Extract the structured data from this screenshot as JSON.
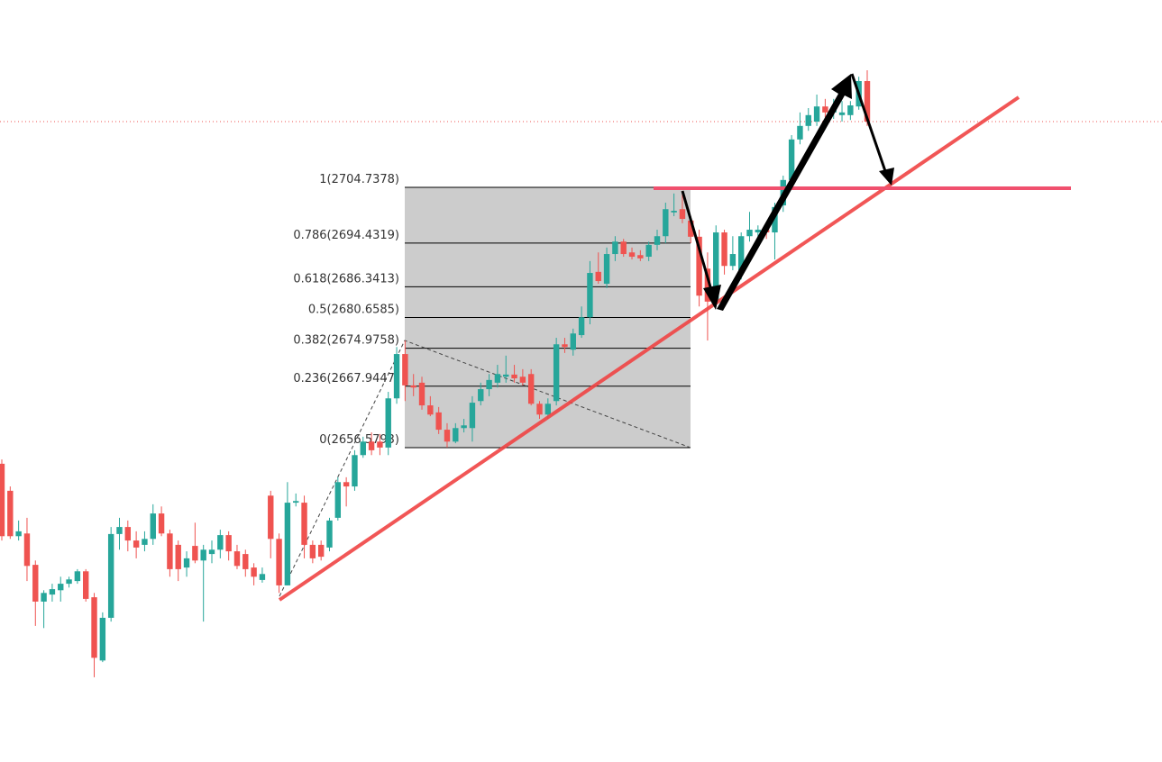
{
  "chart_data": {
    "type": "candlestick",
    "up_color": "#26a69a",
    "down_color": "#ef5350",
    "fib_levels": [
      {
        "value": 2704.7378,
        "label": "1(2704.7378)"
      },
      {
        "value": 2694.4319,
        "label": "0.786(2694.4319)"
      },
      {
        "value": 2686.3413,
        "label": "0.618(2686.3413)"
      },
      {
        "value": 2680.6585,
        "label": "0.5(2680.6585)"
      },
      {
        "value": 2674.9758,
        "label": "0.382(2674.9758)"
      },
      {
        "value": 2667.9447,
        "label": "0.236(2667.9447)"
      },
      {
        "value": 2656.5793,
        "label": "0(2656.5793)"
      }
    ],
    "open": [
      2653.6,
      2648.6,
      2640.2,
      2640.7,
      2634.9,
      2628.1,
      2629.4,
      2630.2,
      2631.4,
      2631.9,
      2633.7,
      2628.9,
      2617.2,
      2625.1,
      2640.6,
      2641.9,
      2639.4,
      2638.6,
      2639.7,
      2644.4,
      2640.7,
      2638.6,
      2634.4,
      2638.4,
      2635.7,
      2636.9,
      2637.7,
      2640.4,
      2637.4,
      2636.9,
      2634.4,
      2632.1,
      2647.7,
      2639.7,
      2631.1,
      2646.4,
      2646.4,
      2638.6,
      2638.6,
      2638.1,
      2643.6,
      2650.2,
      2649.4,
      2655.2,
      2657.7,
      2657.7,
      2656.6,
      2665.7,
      2673.9,
      2668.1,
      2668.6,
      2664.4,
      2663.1,
      2659.9,
      2657.7,
      2660.2,
      2660.2,
      2665.2,
      2667.4,
      2668.6,
      2669.7,
      2670.1,
      2669.7,
      2670.2,
      2664.7,
      2662.7,
      2665.2,
      2675.7,
      2674.7,
      2677.4,
      2680.7,
      2689.1,
      2686.9,
      2692.4,
      2694.7,
      2692.7,
      2692.2,
      2691.9,
      2694.1,
      2695.7,
      2700.1,
      2700.7,
      2698.6,
      2695.6,
      2689.7,
      2683.6,
      2696.4,
      2690.2,
      2689.4,
      2695.7,
      2696.4,
      2696.9,
      2696.4,
      2701.4,
      2706.1,
      2713.6,
      2716.1,
      2716.9,
      2719.7,
      2718.6,
      2718.1,
      2718.1,
      2719.7,
      2724.4
    ],
    "high": [
      2654.4,
      2649.4,
      2643.1,
      2643.6,
      2635.7,
      2630.2,
      2631.4,
      2632.7,
      2632.7,
      2634.1,
      2634.1,
      2629.7,
      2626.1,
      2641.9,
      2643.6,
      2643.1,
      2641.1,
      2641.1,
      2646.1,
      2645.7,
      2641.4,
      2639.4,
      2637.4,
      2642.7,
      2638.6,
      2639.4,
      2641.4,
      2641.1,
      2638.6,
      2637.7,
      2635.2,
      2634.4,
      2648.6,
      2640.7,
      2650.2,
      2648.1,
      2647.7,
      2639.4,
      2639.4,
      2643.6,
      2651.1,
      2651.1,
      2656.1,
      2658.6,
      2659.4,
      2659.1,
      2666.9,
      2675.2,
      2676.4,
      2670.2,
      2669.7,
      2666.1,
      2664.1,
      2661.1,
      2661.1,
      2661.9,
      2666.1,
      2668.6,
      2670.2,
      2671.9,
      2673.6,
      2671.9,
      2671.1,
      2671.1,
      2665.2,
      2665.7,
      2676.9,
      2676.9,
      2678.6,
      2682.7,
      2691.1,
      2692.7,
      2693.6,
      2695.7,
      2695.2,
      2693.6,
      2693.1,
      2694.7,
      2696.9,
      2701.9,
      2703.6,
      2704.1,
      2699.4,
      2696.9,
      2692.7,
      2697.7,
      2696.9,
      2695.7,
      2696.4,
      2700.2,
      2697.7,
      2697.7,
      2701.9,
      2706.9,
      2714.4,
      2718.6,
      2719.4,
      2721.9,
      2721.1,
      2721.1,
      2720.7,
      2720.7,
      2725.2,
      2726.4
    ],
    "low": [
      2639.4,
      2639.7,
      2639.4,
      2631.9,
      2623.6,
      2623.2,
      2628.1,
      2628.1,
      2630.7,
      2631.4,
      2628.1,
      2614.1,
      2616.9,
      2624.4,
      2637.7,
      2637.4,
      2636.1,
      2637.4,
      2638.6,
      2640.2,
      2632.7,
      2631.9,
      2632.7,
      2635.2,
      2624.4,
      2635.2,
      2636.1,
      2635.7,
      2634.1,
      2632.7,
      2631.1,
      2631.6,
      2636.1,
      2629.7,
      2631.1,
      2645.7,
      2636.1,
      2635.2,
      2635.7,
      2637.4,
      2643.1,
      2645.7,
      2648.6,
      2654.7,
      2655.2,
      2655.2,
      2655.2,
      2664.7,
      2665.2,
      2666.1,
      2663.6,
      2662.4,
      2659.1,
      2656.6,
      2657.4,
      2659.4,
      2657.7,
      2664.4,
      2666.1,
      2667.7,
      2668.6,
      2668.6,
      2668.1,
      2664.4,
      2661.9,
      2661.9,
      2664.4,
      2674.1,
      2673.6,
      2676.9,
      2679.4,
      2686.9,
      2686.1,
      2691.1,
      2691.9,
      2691.4,
      2691.1,
      2691.1,
      2693.1,
      2694.4,
      2699.4,
      2698.1,
      2694.4,
      2682.7,
      2676.4,
      2682.7,
      2688.6,
      2689.4,
      2687.7,
      2694.7,
      2693.6,
      2695.2,
      2691.4,
      2700.2,
      2705.2,
      2712.7,
      2715.2,
      2716.1,
      2717.7,
      2717.4,
      2716.9,
      2717.2,
      2719.1,
      2716.1
    ],
    "close": [
      2640.2,
      2640.2,
      2641.1,
      2634.7,
      2628.1,
      2629.7,
      2630.4,
      2631.4,
      2632.2,
      2633.7,
      2628.6,
      2617.7,
      2625.1,
      2640.6,
      2641.9,
      2639.4,
      2638.1,
      2639.7,
      2644.4,
      2640.7,
      2634.1,
      2634.1,
      2636.1,
      2635.7,
      2637.7,
      2637.7,
      2640.4,
      2637.4,
      2634.7,
      2634.1,
      2632.7,
      2633.2,
      2639.7,
      2631.1,
      2646.4,
      2646.7,
      2638.6,
      2636.1,
      2636.4,
      2643.1,
      2650.2,
      2649.4,
      2655.2,
      2657.7,
      2656.1,
      2656.6,
      2665.7,
      2673.9,
      2668.1,
      2667.7,
      2664.4,
      2662.7,
      2659.9,
      2657.7,
      2660.2,
      2660.7,
      2664.9,
      2667.4,
      2669.1,
      2670.2,
      2670.1,
      2669.4,
      2668.6,
      2664.7,
      2662.7,
      2664.7,
      2675.7,
      2675.2,
      2677.7,
      2680.7,
      2688.9,
      2687.4,
      2692.4,
      2694.7,
      2692.4,
      2691.9,
      2691.6,
      2694.1,
      2695.7,
      2700.7,
      2700.4,
      2698.9,
      2695.6,
      2684.7,
      2683.6,
      2696.4,
      2690.2,
      2692.4,
      2695.7,
      2696.9,
      2696.9,
      2696.4,
      2701.1,
      2706.1,
      2713.6,
      2716.1,
      2718.1,
      2719.7,
      2718.6,
      2719.4,
      2718.6,
      2719.9,
      2724.4,
      2716.9
    ]
  }
}
